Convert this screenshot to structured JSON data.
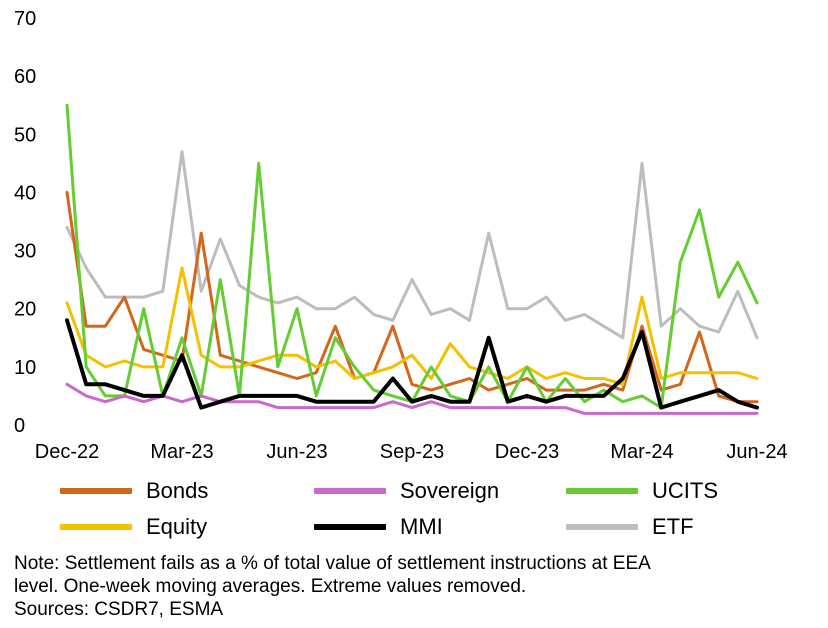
{
  "chart_data": {
    "type": "line",
    "title": "",
    "xlabel": "",
    "ylabel": "",
    "ylim": [
      0,
      70
    ],
    "y_ticks": [
      "0",
      "10",
      "20",
      "30",
      "40",
      "50",
      "60",
      "70"
    ],
    "x_tick_labels": [
      "Dec-22",
      "Mar-23",
      "Jun-23",
      "Sep-23",
      "Dec-23",
      "Mar-24",
      "Jun-24"
    ],
    "x_range": [
      0,
      18
    ],
    "grid": false,
    "legend_position": "bottom",
    "x": [
      0,
      0.5,
      1,
      1.5,
      2,
      2.5,
      3,
      3.5,
      4,
      4.5,
      5,
      5.5,
      6,
      6.5,
      7,
      7.5,
      8,
      8.5,
      9,
      9.5,
      10,
      10.5,
      11,
      11.5,
      12,
      12.5,
      13,
      13.5,
      14,
      14.5,
      15,
      15.5,
      16,
      16.5,
      17,
      17.5,
      18
    ],
    "series": [
      {
        "name": "Bonds",
        "color": "#D4661C",
        "values": [
          40,
          17,
          17,
          22,
          13,
          12,
          11,
          33,
          12,
          11,
          10,
          9,
          8,
          9,
          17,
          8,
          9,
          17,
          7,
          6,
          7,
          8,
          6,
          7,
          8,
          6,
          6,
          6,
          7,
          6,
          17,
          6,
          7,
          16,
          5,
          4,
          4
        ]
      },
      {
        "name": "Sovereign",
        "color": "#C969CB",
        "values": [
          7,
          5,
          4,
          5,
          4,
          5,
          4,
          5,
          4,
          4,
          4,
          3,
          3,
          3,
          3,
          3,
          3,
          4,
          3,
          4,
          3,
          3,
          3,
          3,
          3,
          3,
          3,
          2,
          2,
          2,
          2,
          2,
          2,
          2,
          2,
          2,
          2
        ]
      },
      {
        "name": "UCITS",
        "color": "#66CC33",
        "values": [
          55,
          10,
          5,
          5,
          20,
          5,
          15,
          5,
          25,
          5,
          45,
          10,
          20,
          5,
          15,
          10,
          6,
          5,
          4,
          10,
          5,
          4,
          10,
          4,
          10,
          4,
          8,
          4,
          6,
          4,
          5,
          3,
          28,
          37,
          22,
          28,
          21
        ]
      },
      {
        "name": "Equity",
        "color": "#F5C000",
        "values": [
          21,
          12,
          10,
          11,
          10,
          10,
          27,
          12,
          10,
          10,
          11,
          12,
          12,
          10,
          11,
          8,
          9,
          10,
          12,
          8,
          14,
          10,
          9,
          8,
          10,
          8,
          9,
          8,
          8,
          7,
          22,
          8,
          9,
          9,
          9,
          9,
          8
        ]
      },
      {
        "name": "MMI",
        "color": "#000000",
        "values": [
          18,
          7,
          7,
          6,
          5,
          5,
          12,
          3,
          4,
          5,
          5,
          5,
          5,
          4,
          4,
          4,
          4,
          8,
          4,
          5,
          4,
          4,
          15,
          4,
          5,
          4,
          5,
          5,
          5,
          8,
          16,
          3,
          4,
          5,
          6,
          4,
          3
        ]
      },
      {
        "name": "ETF",
        "color": "#BDBDBD",
        "values": [
          34,
          27,
          22,
          22,
          22,
          23,
          47,
          23,
          32,
          24,
          22,
          21,
          22,
          20,
          20,
          22,
          19,
          18,
          25,
          19,
          20,
          18,
          33,
          20,
          20,
          22,
          18,
          19,
          17,
          15,
          45,
          17,
          20,
          17,
          16,
          23,
          15
        ]
      }
    ]
  },
  "note": {
    "line1": "Note: Settlement fails as a % of total value of settlement instructions at EEA",
    "line2": "level. One-week moving averages. Extreme values removed.",
    "line3": "Sources: CSDR7, ESMA"
  }
}
